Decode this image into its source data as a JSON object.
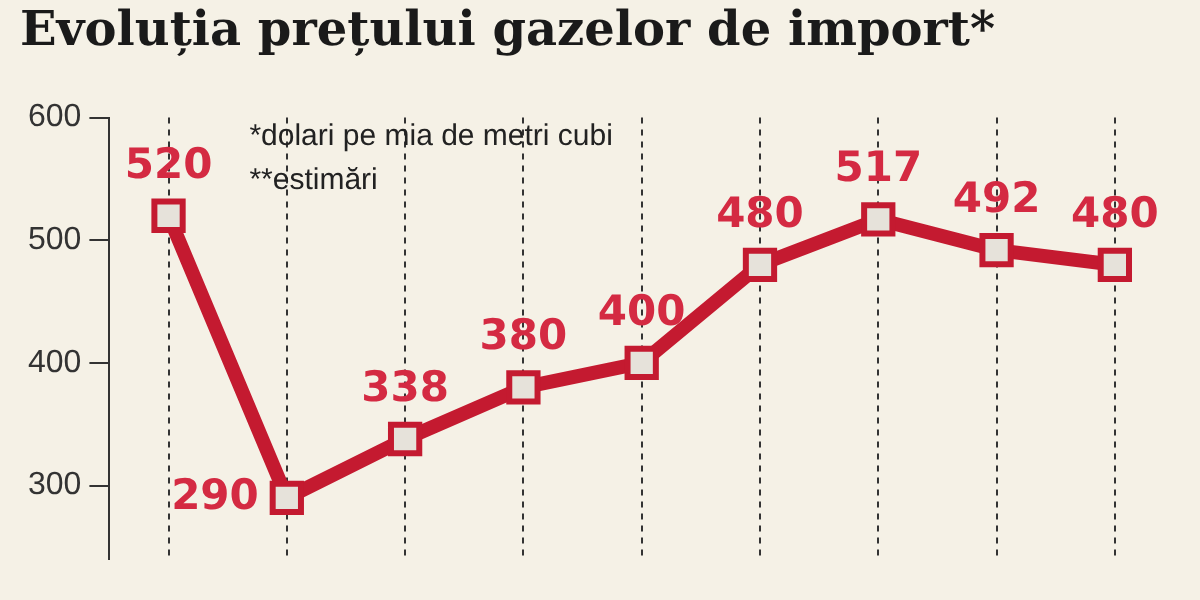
{
  "chart_data": {
    "type": "line",
    "title": "Evoluția prețului gazelor de import*",
    "annotations": [
      "*dolari pe mia de metri cubi",
      "**estimări"
    ],
    "categories": [
      null,
      null,
      null,
      null,
      null,
      null,
      null,
      null,
      null
    ],
    "series": [
      {
        "color": "#c41a30",
        "values": [
          520,
          290,
          338,
          380,
          400,
          480,
          517,
          492,
          480
        ]
      }
    ],
    "ylim": [
      240,
      600
    ],
    "yticks": [
      300,
      400,
      500,
      600
    ],
    "grid": "x",
    "legend": false,
    "marker": "square",
    "line_style": "solid",
    "data_labels": true
  }
}
